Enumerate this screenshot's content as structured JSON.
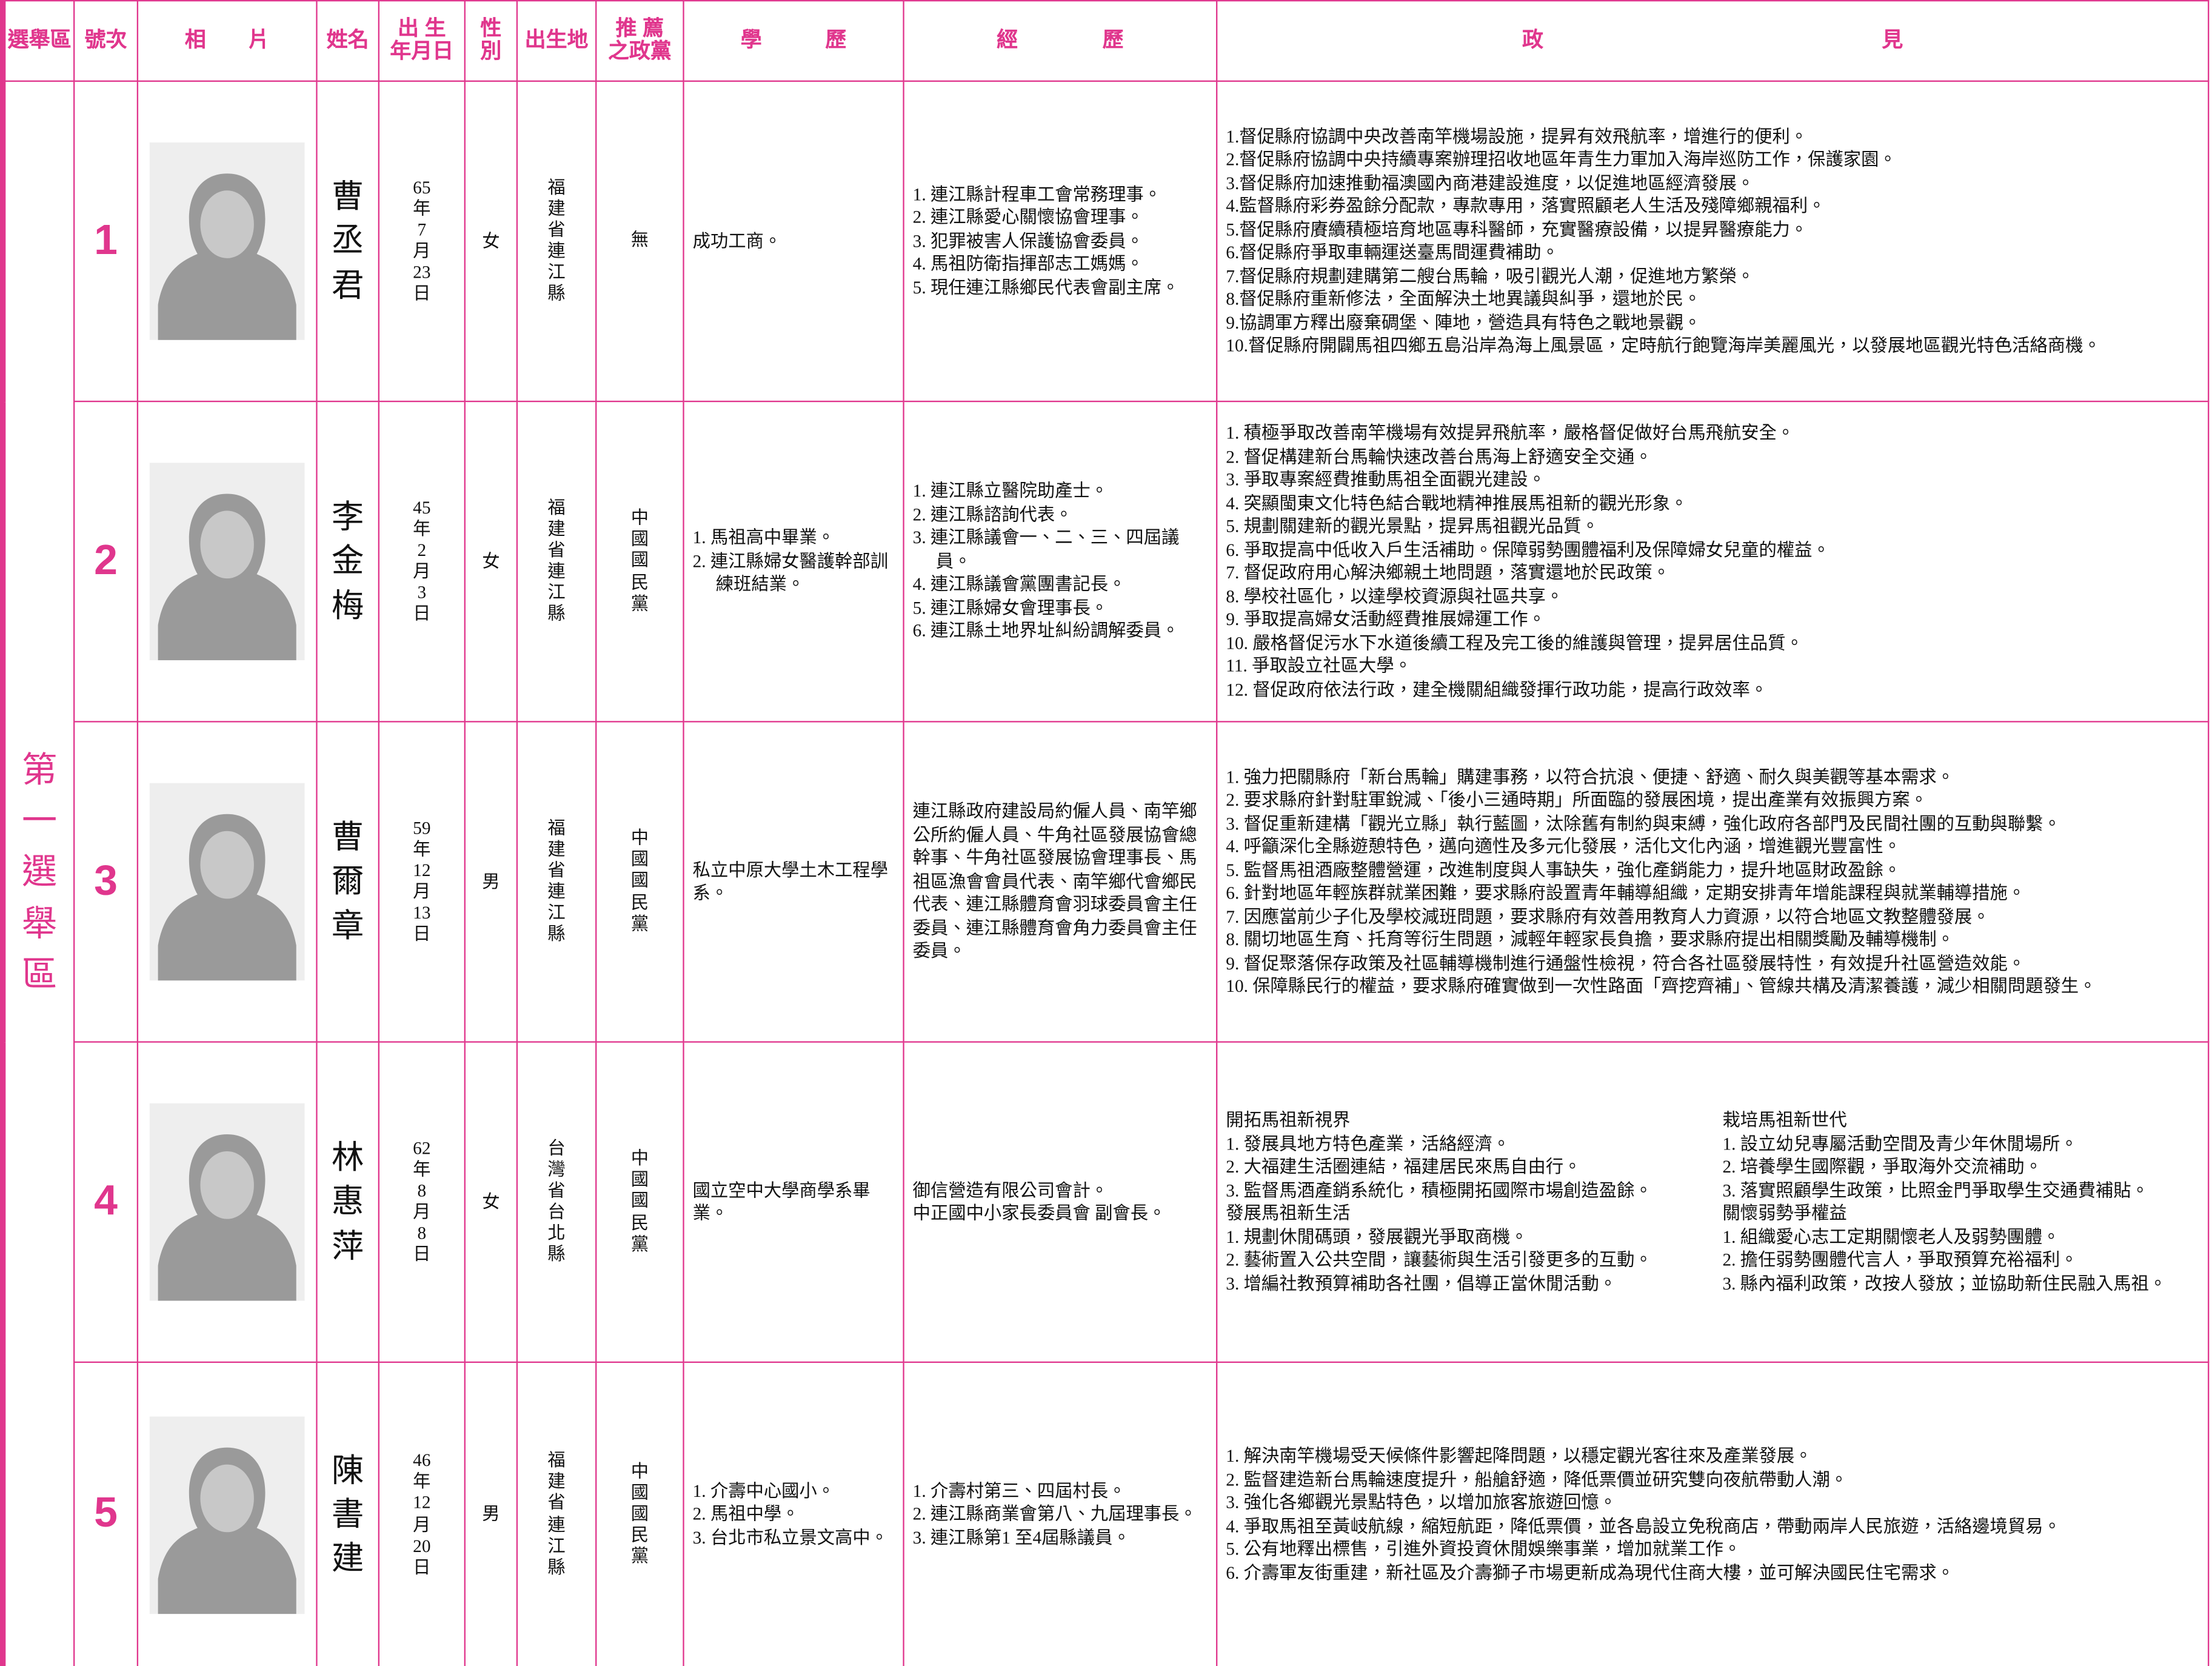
{
  "header": [
    "選舉區",
    "號次",
    "相　　片",
    "姓名",
    "出 生\n年月日",
    "性\n別",
    "出生地",
    "推 薦\n之政黨",
    "學　　　歷",
    "經　　　　歷",
    "政　　　　　　　　　　　　　　　　見"
  ],
  "district": "第一選舉區",
  "candidates": [
    {
      "number": 1,
      "name": "曹丞君",
      "birth": "65年7月23日",
      "gender": "女",
      "birthplace": "福建省連江縣",
      "party": "無",
      "education": [
        "成功工商。"
      ],
      "experience": [
        "1. 連江縣計程車工會常務理事。",
        "2. 連江縣愛心關懷協會理事。",
        "3. 犯罪被害人保護協會委員。",
        "4. 馬祖防衛指揮部志工媽媽。",
        "5. 現任連江縣鄉民代表會副主席。"
      ],
      "platform": [
        [
          "1.督促縣府協調中央改善南竿機場設施，提昇有效飛航率，增進行的便利。",
          "2.督促縣府協調中央持續專案辦理招收地區年青生力軍加入海岸巡防工作，保護家園。",
          "3.督促縣府加速推動福澳國內商港建設進度，以促進地區經濟發展。",
          "4.監督縣府彩券盈餘分配款，專款專用，落實照顧老人生活及殘障鄉親福利。",
          "5.督促縣府賡續積極培育地區專科醫師，充實醫療設備，以提昇醫療能力。",
          "6.督促縣府爭取車輛運送臺馬間運費補助。",
          "7.督促縣府規劃建購第二艘台馬輪，吸引觀光人潮，促進地方繁榮。",
          "8.督促縣府重新修法，全面解決土地異議與糾爭，還地於民。",
          "9.協調軍方釋出廢棄碉堡、陣地，營造具有特色之戰地景觀。",
          "10.督促縣府開闢馬祖四鄉五島沿岸為海上風景區，定時航行飽覽海岸美麗風光，以發展地區觀光特色活絡商機。"
        ]
      ]
    },
    {
      "number": 2,
      "name": "李金梅",
      "birth": "45年2月3日",
      "gender": "女",
      "birthplace": "福建省連江縣",
      "party": "中國國民黨",
      "education": [
        "1. 馬祖高中畢業。",
        "2. 連江縣婦女醫護幹部訓練班結業。"
      ],
      "experience": [
        "1. 連江縣立醫院助產士。",
        "2. 連江縣諮詢代表。",
        "3. 連江縣議會一、二、三、四屆議員。",
        "4. 連江縣議會黨團書記長。",
        "5. 連江縣婦女會理事長。",
        "6. 連江縣土地界址糾紛調解委員。"
      ],
      "platform": [
        [
          "1. 積極爭取改善南竿機場有效提昇飛航率，嚴格督促做好台馬飛航安全。",
          "2. 督促構建新台馬輪快速改善台馬海上舒適安全交通。",
          "3. 爭取專案經費推動馬祖全面觀光建設。",
          "4. 突顯閩東文化特色結合戰地精神推展馬祖新的觀光形象。",
          "5. 規劃關建新的觀光景點，提昇馬祖觀光品質。",
          "6. 爭取提高中低收入戶生活補助。保障弱勢團體福利及保障婦女兒童的權益。",
          "7. 督促政府用心解決鄉親土地問題，落實還地於民政策。",
          "8. 學校社區化，以達學校資源與社區共享。",
          "9. 爭取提高婦女活動經費推展婦運工作。",
          "10. 嚴格督促污水下水道後續工程及完工後的維護與管理，提昇居住品質。",
          "11. 爭取設立社區大學。",
          "12. 督促政府依法行政，建全機關組織發揮行政功能，提高行政效率。"
        ]
      ]
    },
    {
      "number": 3,
      "name": "曹爾章",
      "birth": "59年12月13日",
      "gender": "男",
      "birthplace": "福建省連江縣",
      "party": "中國國民黨",
      "education": [
        "私立中原大學土木工程學系。"
      ],
      "experience": [
        "連江縣政府建設局約僱人員、南竿鄉公所約僱人員、牛角社區發展協會總幹事、牛角社區發展協會理事長、馬祖區漁會會員代表、南竿鄉代會鄉民代表、連江縣體育會羽球委員會主任委員、連江縣體育會角力委員會主任委員。"
      ],
      "platform": [
        [
          "1. 強力把關縣府「新台馬輪」購建事務，以符合抗浪、便捷、舒適、耐久與美觀等基本需求。",
          "2. 要求縣府針對駐軍銳減、「後小三通時期」所面臨的發展困境，提出產業有效振興方案。",
          "3. 督促重新建構「觀光立縣」執行藍圖，汰除舊有制約與束縛，強化政府各部門及民間社團的互動與聯繫。",
          "4. 呼籲深化全縣遊憩特色，邁向適性及多元化發展，活化文化內涵，增進觀光豐富性。",
          "5. 監督馬祖酒廠整體營運，改進制度與人事缺失，強化產銷能力，提升地區財政盈餘。",
          "6. 針對地區年輕族群就業困難，要求縣府設置青年輔導組織，定期安排青年增能課程與就業輔導措施。",
          "7. 因應當前少子化及學校減班問題，要求縣府有效善用教育人力資源，以符合地區文教整體發展。",
          "8. 關切地區生育、托育等衍生問題，減輕年輕家長負擔，要求縣府提出相關獎勵及輔導機制。",
          "9. 督促聚落保存政策及社區輔導機制進行通盤性檢視，符合各社區發展特性，有效提升社區營造效能。",
          "10. 保障縣民行的權益，要求縣府確實做到一次性路面「齊挖齊補」、管線共構及清潔養護，減少相關問題發生。"
        ]
      ]
    },
    {
      "number": 4,
      "name": "林惠萍",
      "birth": "62年8月8日",
      "gender": "女",
      "birthplace": "台灣省台北縣",
      "party": "中國國民黨",
      "education": [
        "國立空中大學商學系畢業。"
      ],
      "experience": [
        "御信營造有限公司會計。",
        "中正國中小家長委員會 副會長。"
      ],
      "platform": [
        [
          "開拓馬祖新視界",
          "1. 發展具地方特色產業，活絡經濟。",
          "2. 大福建生活圈連結，福建居民來馬自由行。",
          "3. 監督馬酒產銷系統化，積極開拓國際市場創造盈餘。",
          "發展馬祖新生活",
          "1. 規劃休閒碼頭，發展觀光爭取商機。",
          "2. 藝術置入公共空間，讓藝術與生活引發更多的互動。",
          "3. 增編社教預算補助各社團，倡導正當休閒活動。"
        ],
        [
          "栽培馬祖新世代",
          "1. 設立幼兒專屬活動空間及青少年休閒場所。",
          "2. 培養學生國際觀，爭取海外交流補助。",
          "3. 落實照顧學生政策，比照金門爭取學生交通費補貼。",
          "關懷弱勢爭權益",
          "1. 組織愛心志工定期關懷老人及弱勢團體。",
          "2. 擔任弱勢團體代言人，爭取預算充裕福利。",
          "3. 縣內福利政策，改按人發放；並協助新住民融入馬祖。"
        ]
      ]
    },
    {
      "number": 5,
      "name": "陳書建",
      "birth": "46年12月20日",
      "gender": "男",
      "birthplace": "福建省連江縣",
      "party": "中國國民黨",
      "education": [
        "1. 介壽中心國小。",
        "2. 馬祖中學。",
        "3. 台北市私立景文高中。"
      ],
      "experience": [
        "1. 介壽村第三、四屆村長。",
        "2. 連江縣商業會第八、九屆理事長。",
        "3. 連江縣第1 至4屆縣議員。"
      ],
      "platform": [
        [
          "1. 解決南竿機場受天候條件影響起降問題，以穩定觀光客往來及產業發展。",
          "2. 監督建造新台馬輪速度提升，船艙舒適，降低票價並研究雙向夜航帶動人潮。",
          "3. 強化各鄉觀光景點特色，以增加旅客旅遊回憶。",
          "4. 爭取馬祖至黃岐航線，縮短航距，降低票價，並各島設立免稅商店，帶動兩岸人民旅遊，活絡邊境貿易。",
          "5. 公有地釋出標售，引進外資投資休閒娛樂事業，增加就業工作。",
          "6. 介壽軍友街重建，新社區及介壽獅子市場更新成為現代住商大樓，並可解決國民住宅需求。"
        ]
      ]
    }
  ]
}
